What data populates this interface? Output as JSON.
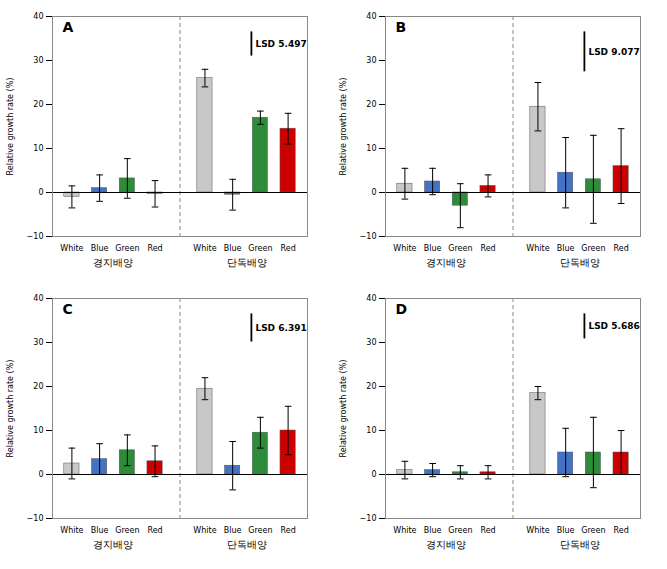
{
  "chart_data": [
    {
      "type": "bar",
      "title": "A",
      "categories": [
        "White",
        "Blue",
        "Green",
        "Red"
      ],
      "colors": [
        "#c8c8c8",
        "#4472c4",
        "#2e8b3a",
        "#cc0000"
      ],
      "groups": [
        {
          "name": "경지배양",
          "values": [
            -1.0,
            1.0,
            3.2,
            -0.3
          ],
          "errors": [
            2.5,
            3.0,
            4.5,
            3.0
          ]
        },
        {
          "name": "단독배양",
          "values": [
            26.0,
            -0.5,
            17.0,
            14.5
          ],
          "errors": [
            2.0,
            3.5,
            1.5,
            3.5
          ]
        }
      ],
      "lsd": {
        "label": "LSD 5.497",
        "value": 5.497
      },
      "ylabel": "Relative growth rate (%)",
      "ylim": [
        -10,
        40
      ],
      "yticks": [
        -10,
        0,
        10,
        20,
        30,
        40
      ]
    },
    {
      "type": "bar",
      "title": "B",
      "categories": [
        "White",
        "Blue",
        "Green",
        "Red"
      ],
      "colors": [
        "#c8c8c8",
        "#4472c4",
        "#2e8b3a",
        "#cc0000"
      ],
      "groups": [
        {
          "name": "경지배양",
          "values": [
            2.0,
            2.5,
            -3.0,
            1.5
          ],
          "errors": [
            3.5,
            3.0,
            5.0,
            2.5
          ]
        },
        {
          "name": "단독배양",
          "values": [
            19.5,
            4.5,
            3.0,
            6.0
          ],
          "errors": [
            5.5,
            8.0,
            10.0,
            8.5
          ]
        }
      ],
      "lsd": {
        "label": "LSD 9.077",
        "value": 9.077
      },
      "ylabel": "Relative growth rate (%)",
      "ylim": [
        -10,
        40
      ],
      "yticks": [
        -10,
        0,
        10,
        20,
        30,
        40
      ]
    },
    {
      "type": "bar",
      "title": "C",
      "categories": [
        "White",
        "Blue",
        "Green",
        "Red"
      ],
      "colors": [
        "#c8c8c8",
        "#4472c4",
        "#2e8b3a",
        "#cc0000"
      ],
      "groups": [
        {
          "name": "경지배양",
          "values": [
            2.5,
            3.5,
            5.5,
            3.0
          ],
          "errors": [
            3.5,
            3.5,
            3.5,
            3.5
          ]
        },
        {
          "name": "단독배양",
          "values": [
            19.5,
            2.0,
            9.5,
            10.0
          ],
          "errors": [
            2.5,
            5.5,
            3.5,
            5.5
          ]
        }
      ],
      "lsd": {
        "label": "LSD 6.391",
        "value": 6.391
      },
      "ylabel": "Relative growth rate (%)",
      "ylim": [
        -10,
        40
      ],
      "yticks": [
        -10,
        0,
        10,
        20,
        30,
        40
      ]
    },
    {
      "type": "bar",
      "title": "D",
      "categories": [
        "White",
        "Blue",
        "Green",
        "Red"
      ],
      "colors": [
        "#c8c8c8",
        "#4472c4",
        "#2e8b3a",
        "#cc0000"
      ],
      "groups": [
        {
          "name": "경지배양",
          "values": [
            1.0,
            1.0,
            0.5,
            0.5
          ],
          "errors": [
            2.0,
            1.5,
            1.5,
            1.5
          ]
        },
        {
          "name": "단독배양",
          "values": [
            18.5,
            5.0,
            5.0,
            5.0
          ],
          "errors": [
            1.5,
            5.5,
            8.0,
            5.0
          ]
        }
      ],
      "lsd": {
        "label": "LSD 5.686",
        "value": 5.686
      },
      "ylabel": "Relative growth rate (%)",
      "ylim": [
        -10,
        40
      ],
      "yticks": [
        -10,
        0,
        10,
        20,
        30,
        40
      ]
    }
  ]
}
